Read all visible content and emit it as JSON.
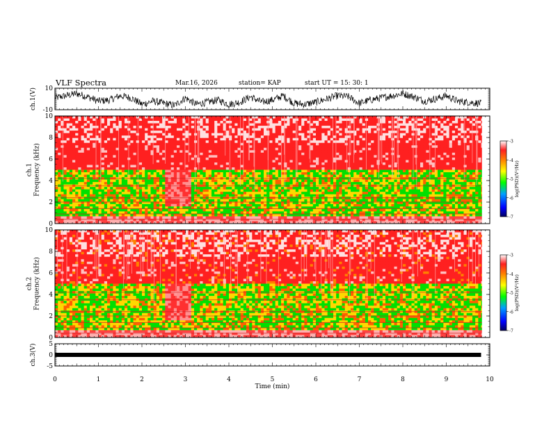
{
  "header": {
    "title": "VLF Spectra",
    "date": "Mar.16, 2026",
    "station": "station= KAP",
    "start": "start  UT  =   15: 30: 1"
  },
  "colors": {
    "spectro_low": "#00e000",
    "spectro_mid": "#ffd800",
    "spectro_high": "#ff2020",
    "trace": "#000000"
  },
  "chart_data": [
    {
      "type": "line",
      "panel": "ch1-waveform",
      "ylabel": "ch.1(V)",
      "ylim": [
        -10,
        10
      ],
      "yticks": [
        "10",
        "-10"
      ],
      "xlim": [
        0,
        10
      ],
      "series": [
        {
          "x": [
            0,
            0.25,
            0.5,
            0.75,
            1,
            1.25,
            1.5,
            1.75,
            2,
            2.25,
            2.5,
            2.75,
            3,
            3.25,
            3.5,
            3.75,
            4,
            4.25,
            4.5,
            4.75,
            5,
            5.25,
            5.5,
            5.75,
            6,
            6.25,
            6.5,
            6.75,
            7,
            7.25,
            7.5,
            7.75,
            8,
            8.25,
            8.5,
            8.75,
            9,
            9.25,
            9.5,
            9.75
          ],
          "values": [
            1,
            3,
            5,
            2,
            -2,
            -1,
            3,
            1,
            -5,
            -2,
            -4,
            -6,
            1,
            -5,
            -3,
            -1,
            -5,
            -3,
            2,
            -3,
            -1,
            3,
            -4,
            -5,
            -3,
            0,
            3,
            2,
            -4,
            -1,
            1,
            3,
            5,
            2,
            -2,
            0,
            3,
            -2,
            -3,
            -4
          ]
        }
      ]
    },
    {
      "type": "heatmap",
      "panel": "ch1-spectrogram",
      "ylabel": "ch.1\nFrequency  (kHz)",
      "ylim": [
        0,
        10
      ],
      "yticks": [
        "0",
        "2",
        "4",
        "6",
        "8",
        "10"
      ],
      "xlim": [
        0,
        10
      ],
      "colorbar": {
        "label": "log(PSD)(V²/Hz)",
        "ticks": [
          "-3",
          "-4",
          "-5",
          "-6",
          "-7"
        ],
        "range": [
          -7,
          -3
        ]
      }
    },
    {
      "type": "heatmap",
      "panel": "ch2-spectrogram",
      "ylabel": "ch.2\nFrequency  (kHz)",
      "ylim": [
        0,
        10
      ],
      "yticks": [
        "0",
        "2",
        "4",
        "6",
        "8",
        "10"
      ],
      "xlim": [
        0,
        10
      ],
      "colorbar": {
        "label": "log(PSD)(V²/Hz)",
        "ticks": [
          "-3",
          "-4",
          "-5",
          "-6",
          "-7"
        ],
        "range": [
          -7,
          -3
        ]
      }
    },
    {
      "type": "line",
      "panel": "ch3-waveform",
      "ylabel": "ch.3(V)",
      "ylim": [
        -5,
        5
      ],
      "yticks": [
        "5",
        "0",
        "-5"
      ],
      "xlim": [
        0,
        10
      ],
      "series": [
        {
          "x": [
            0,
            9.8
          ],
          "values": [
            0,
            0
          ]
        }
      ]
    }
  ],
  "xaxis": {
    "label": "Time  (min)",
    "ticks": [
      "0",
      "1",
      "2",
      "3",
      "4",
      "5",
      "6",
      "7",
      "8",
      "9",
      "10"
    ]
  }
}
